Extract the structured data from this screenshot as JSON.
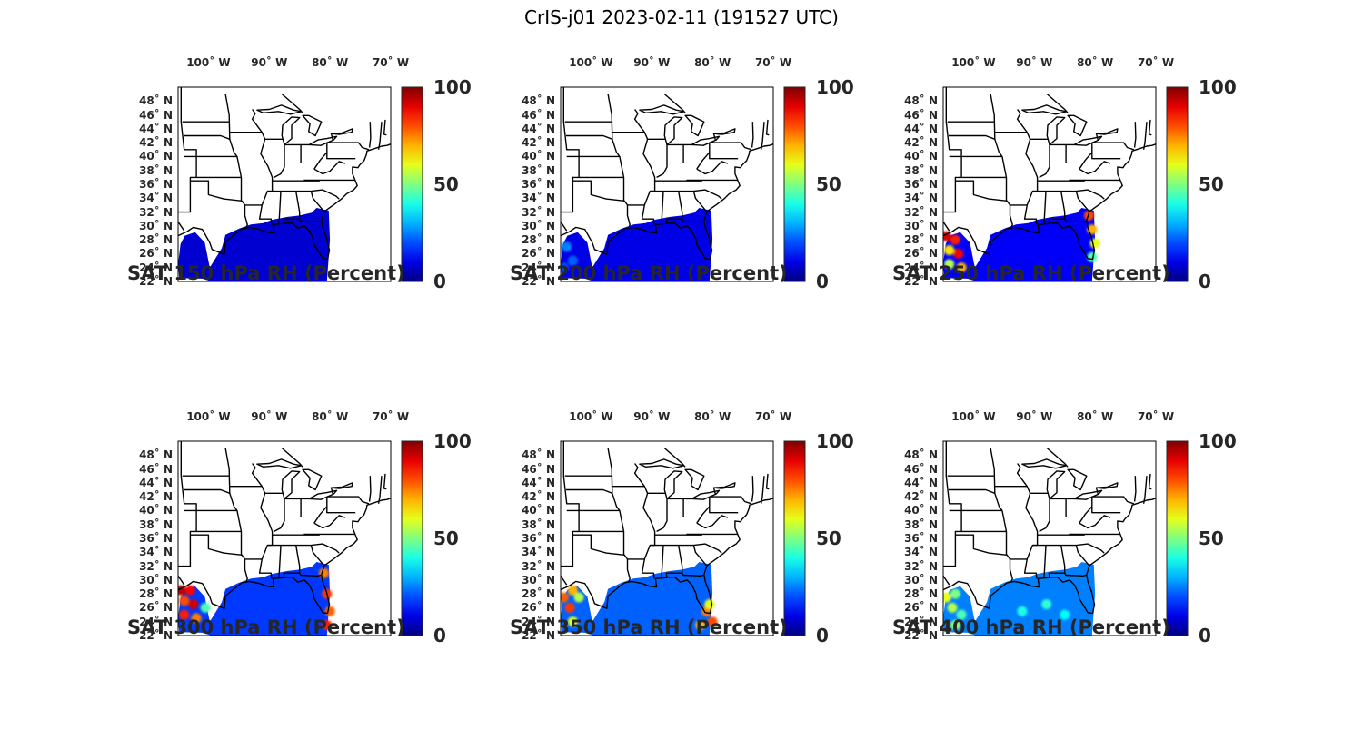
{
  "figure": {
    "title": "CrIS-j01 2023-02-11 (191527 UTC)"
  },
  "map": {
    "lon_range": [
      -105,
      -70
    ],
    "lat_range": [
      22,
      50
    ],
    "lon_ticks": [
      {
        "value": -100,
        "label": "100˚ W"
      },
      {
        "value": -90,
        "label": "90˚ W"
      },
      {
        "value": -80,
        "label": "80˚ W"
      },
      {
        "value": -70,
        "label": "70˚ W"
      }
    ],
    "lat_ticks": [
      {
        "value": 48,
        "label": "48˚ N"
      },
      {
        "value": 46,
        "label": "46˚ N"
      },
      {
        "value": 44,
        "label": "44˚ N"
      },
      {
        "value": 42,
        "label": "42˚ N"
      },
      {
        "value": 40,
        "label": "40˚ N"
      },
      {
        "value": 38,
        "label": "38˚ N"
      },
      {
        "value": 36,
        "label": "36˚ N"
      },
      {
        "value": 34,
        "label": "34˚ N"
      },
      {
        "value": 32,
        "label": "32˚ N"
      },
      {
        "value": 30,
        "label": "30˚ N"
      },
      {
        "value": 28,
        "label": "28˚ N"
      },
      {
        "value": 26,
        "label": "26˚ N"
      },
      {
        "value": 24,
        "label": "24˚ N"
      },
      {
        "value": 22,
        "label": "22˚ N"
      }
    ],
    "colorbar": {
      "min": 0,
      "max": 100,
      "labels": [
        "100",
        "50",
        "0"
      ],
      "colormap": "jet"
    }
  },
  "panels": [
    {
      "caption": "SAT 150 hPa RH (Percent)",
      "level_hpa": 150,
      "background_rh": 8,
      "moist_spots": []
    },
    {
      "caption": "SAT 200 hPa RH (Percent)",
      "level_hpa": 200,
      "background_rh": 10,
      "moist_spots": [
        {
          "lon": -104.0,
          "lat": 27.0,
          "rh": 25
        },
        {
          "lon": -103.0,
          "lat": 25.0,
          "rh": 22
        },
        {
          "lon": -104.5,
          "lat": 24.0,
          "rh": 20
        }
      ]
    },
    {
      "caption": "SAT 250 hPa RH (Percent)",
      "level_hpa": 250,
      "background_rh": 12,
      "moist_spots": [
        {
          "lon": -104.5,
          "lat": 28.5,
          "rh": 92
        },
        {
          "lon": -103.0,
          "lat": 28.0,
          "rh": 85
        },
        {
          "lon": -104.0,
          "lat": 26.5,
          "rh": 65
        },
        {
          "lon": -102.5,
          "lat": 26.0,
          "rh": 88
        },
        {
          "lon": -104.0,
          "lat": 24.5,
          "rh": 55
        },
        {
          "lon": -102.0,
          "lat": 24.0,
          "rh": 70
        },
        {
          "lon": -81.0,
          "lat": 31.5,
          "rh": 80
        },
        {
          "lon": -80.5,
          "lat": 29.5,
          "rh": 70
        },
        {
          "lon": -80.0,
          "lat": 27.5,
          "rh": 60
        },
        {
          "lon": -80.5,
          "lat": 25.5,
          "rh": 45
        }
      ]
    },
    {
      "caption": "SAT 300 hPa RH (Percent)",
      "level_hpa": 300,
      "background_rh": 18,
      "moist_spots": [
        {
          "lon": -104.5,
          "lat": 28.5,
          "rh": 95
        },
        {
          "lon": -103.0,
          "lat": 28.5,
          "rh": 88
        },
        {
          "lon": -104.0,
          "lat": 27.0,
          "rh": 80
        },
        {
          "lon": -102.5,
          "lat": 26.5,
          "rh": 92
        },
        {
          "lon": -104.0,
          "lat": 25.0,
          "rh": 85
        },
        {
          "lon": -102.0,
          "lat": 24.5,
          "rh": 75
        },
        {
          "lon": -100.5,
          "lat": 26.0,
          "rh": 45
        },
        {
          "lon": -81.0,
          "lat": 31.0,
          "rh": 75
        },
        {
          "lon": -80.5,
          "lat": 28.0,
          "rh": 82
        },
        {
          "lon": -80.0,
          "lat": 25.5,
          "rh": 78
        },
        {
          "lon": -80.5,
          "lat": 23.5,
          "rh": 85
        }
      ]
    },
    {
      "caption": "SAT 350 hPa RH (Percent)",
      "level_hpa": 350,
      "background_rh": 22,
      "moist_spots": [
        {
          "lon": -104.5,
          "lat": 27.5,
          "rh": 78
        },
        {
          "lon": -103.0,
          "lat": 28.5,
          "rh": 70
        },
        {
          "lon": -103.5,
          "lat": 26.0,
          "rh": 82
        },
        {
          "lon": -102.0,
          "lat": 27.5,
          "rh": 55
        },
        {
          "lon": -103.0,
          "lat": 24.0,
          "rh": 60
        },
        {
          "lon": -81.0,
          "lat": 25.5,
          "rh": 75
        },
        {
          "lon": -80.0,
          "lat": 24.0,
          "rh": 80
        },
        {
          "lon": -82.0,
          "lat": 23.5,
          "rh": 70
        },
        {
          "lon": -80.5,
          "lat": 26.5,
          "rh": 60
        }
      ]
    },
    {
      "caption": "SAT 400 hPa RH (Percent)",
      "level_hpa": 400,
      "background_rh": 25,
      "moist_spots": [
        {
          "lon": -104.5,
          "lat": 27.5,
          "rh": 60
        },
        {
          "lon": -103.0,
          "lat": 28.0,
          "rh": 50
        },
        {
          "lon": -103.5,
          "lat": 26.0,
          "rh": 55
        },
        {
          "lon": -102.0,
          "lat": 25.0,
          "rh": 45
        },
        {
          "lon": -103.0,
          "lat": 23.5,
          "rh": 52
        },
        {
          "lon": -92.0,
          "lat": 25.5,
          "rh": 40
        },
        {
          "lon": -88.0,
          "lat": 26.5,
          "rh": 42
        },
        {
          "lon": -85.0,
          "lat": 25.0,
          "rh": 38
        }
      ]
    }
  ]
}
